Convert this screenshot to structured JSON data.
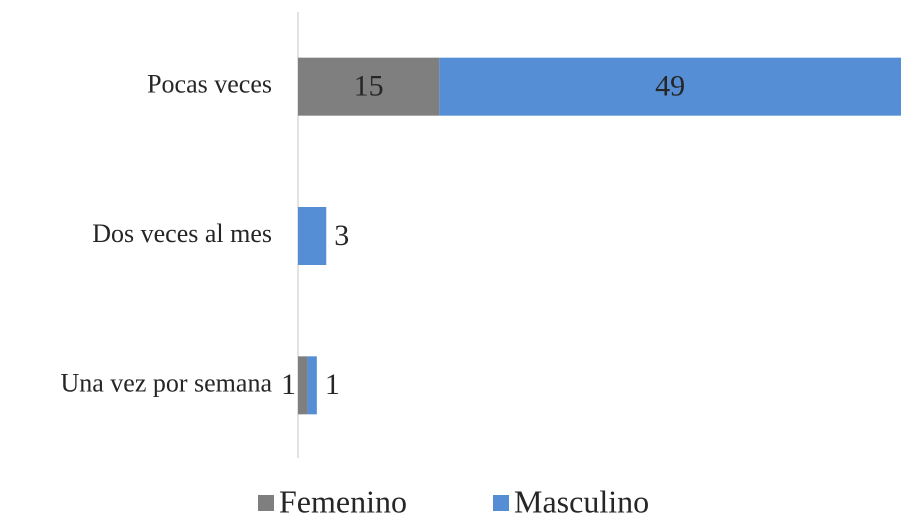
{
  "chart_data": {
    "type": "bar",
    "orientation": "horizontal",
    "stacked": true,
    "categories": [
      "Pocas veces",
      "Dos veces al mes",
      "Una vez por semana"
    ],
    "series": [
      {
        "name": "Femenino",
        "color": "#7f7f7f",
        "values": [
          15,
          null,
          1
        ]
      },
      {
        "name": "Masculino",
        "color": "#558ed5",
        "values": [
          49,
          3,
          1
        ]
      }
    ],
    "legend": "bottom"
  }
}
